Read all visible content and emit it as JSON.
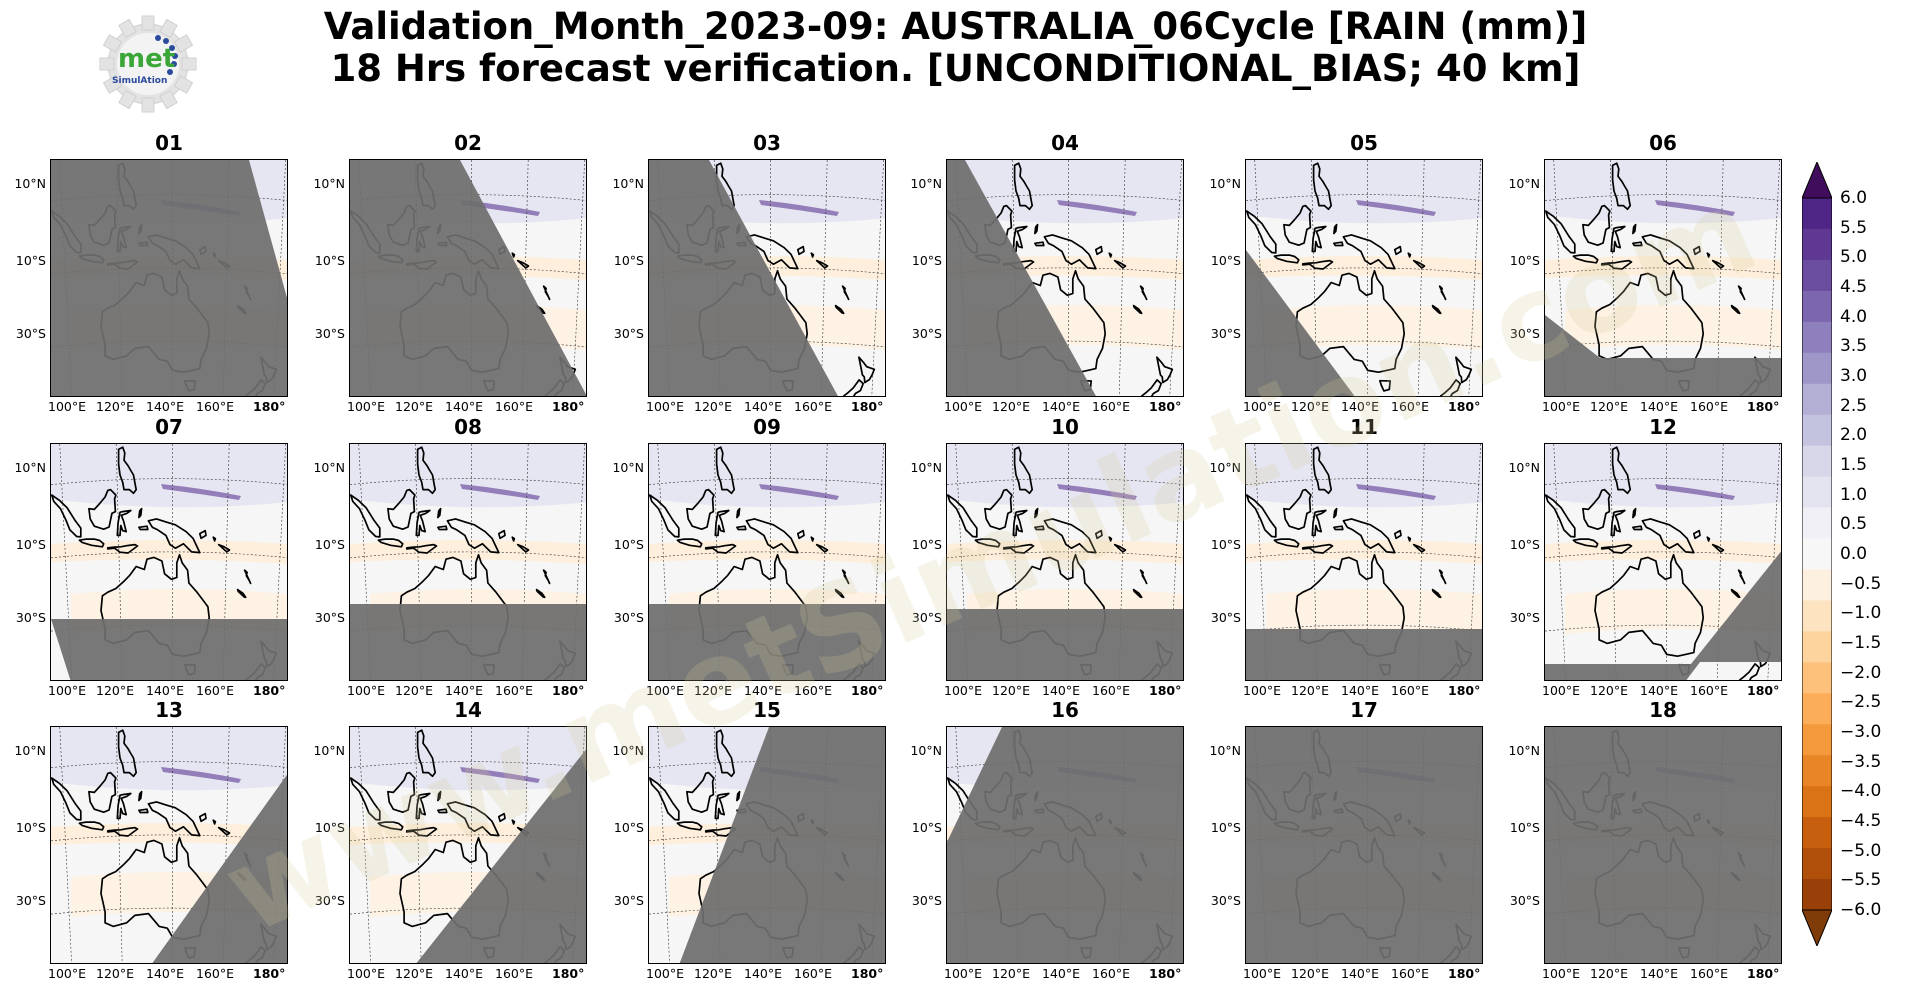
{
  "title": {
    "line1": "Validation_Month_2023-09: AUSTRALIA_06Cycle [RAIN (mm)]",
    "line2": "18 Hrs forecast verification. [UNCONDITIONAL_BIAS; 40 km]"
  },
  "logo": {
    "text": "met",
    "subtext": "SimulAtion"
  },
  "watermark": {
    "text": "www.metSimulation.com"
  },
  "map_axes": {
    "lat_labels": [
      "10°N",
      "10°S",
      "30°S"
    ],
    "lon_labels": [
      "100°E",
      "120°E",
      "140°E",
      "160°E",
      "180°"
    ]
  },
  "panels": [
    {
      "label": "01"
    },
    {
      "label": "02"
    },
    {
      "label": "03"
    },
    {
      "label": "04"
    },
    {
      "label": "05"
    },
    {
      "label": "06"
    },
    {
      "label": "07"
    },
    {
      "label": "08"
    },
    {
      "label": "09"
    },
    {
      "label": "10"
    },
    {
      "label": "11"
    },
    {
      "label": "12"
    },
    {
      "label": "13"
    },
    {
      "label": "14"
    },
    {
      "label": "15"
    },
    {
      "label": "16"
    },
    {
      "label": "17"
    },
    {
      "label": "18"
    }
  ],
  "colorbar": {
    "labels": [
      "6.0",
      "5.5",
      "5.0",
      "4.5",
      "4.0",
      "3.5",
      "3.0",
      "2.5",
      "2.0",
      "1.5",
      "1.0",
      "0.5",
      "0.0",
      "−0.5",
      "−1.0",
      "−1.5",
      "−2.0",
      "−2.5",
      "−3.0",
      "−3.5",
      "−4.0",
      "−4.5",
      "−5.0",
      "−5.5",
      "−6.0"
    ],
    "colors_top_to_bottom": [
      "#3f0d5c",
      "#4f2585",
      "#5e3893",
      "#6b4d9f",
      "#7c66ae",
      "#8d80bc",
      "#9f97c8",
      "#b2aed4",
      "#c4c3df",
      "#d7d7e9",
      "#e4e4f1",
      "#f0f0f6",
      "#f7f7f7",
      "#fdf0e0",
      "#fde3c0",
      "#fdd49e",
      "#fdc17b",
      "#fbad5a",
      "#f59a3c",
      "#e88526",
      "#d97316",
      "#c7600e",
      "#b04f0a",
      "#984008",
      "#7f3b08"
    ],
    "extend": "both"
  },
  "colors": {
    "missing_mask": "#6e6e6e",
    "coast": "#000000"
  }
}
